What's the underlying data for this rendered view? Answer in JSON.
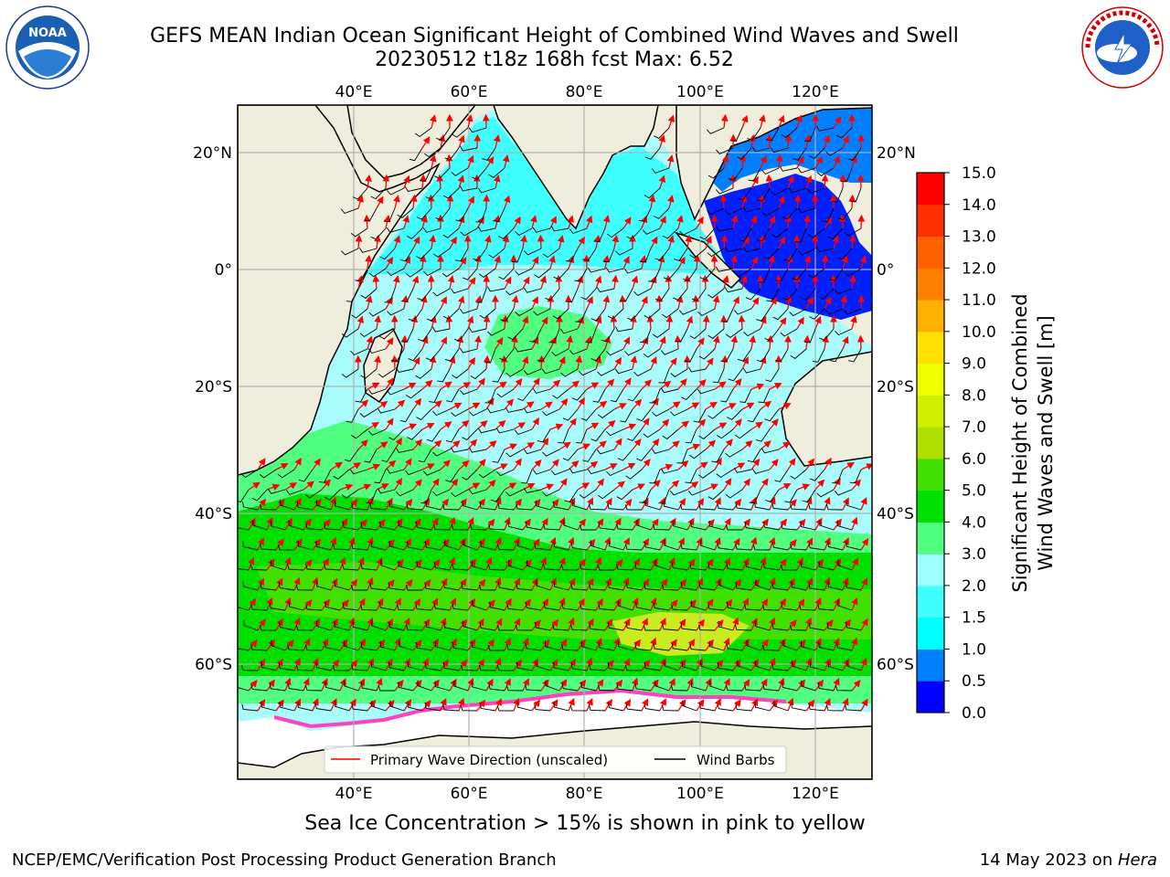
{
  "title": {
    "line1": "GEFS MEAN Indian Ocean Significant Height of Combined Wind Waves and Swell",
    "line2": "20230512 t18z 168h fcst   Max: 6.52"
  },
  "logos": {
    "left": {
      "name": "noaa-logo",
      "text": "NOAA"
    },
    "right": {
      "name": "nws-logo",
      "text": "NATIONAL WEATHER SERVICE"
    }
  },
  "map": {
    "lon_ticks": [
      "40°E",
      "60°E",
      "80°E",
      "100°E",
      "120°E"
    ],
    "lat_ticks_left": [
      "20°N",
      "0°",
      "20°S",
      "40°S",
      "60°S"
    ],
    "lat_ticks_right": [
      "20°N",
      "0°",
      "20°S",
      "40°S",
      "60°S"
    ],
    "land_color": "#efeddb",
    "grid_color": "#b0b0b0"
  },
  "legend": {
    "wave_direction": "Primary Wave Direction (unscaled)",
    "wind_barbs": "Wind Barbs",
    "wave_color": "#ff0000",
    "barb_color": "#000000"
  },
  "colorbar": {
    "label_line1": "Significant Height of Combined",
    "label_line2": "Wind Waves and Swell [m]",
    "ticks": [
      "0.0",
      "0.5",
      "1.0",
      "1.5",
      "2.0",
      "3.0",
      "4.0",
      "5.0",
      "6.0",
      "7.0",
      "8.0",
      "9.0",
      "10.0",
      "11.0",
      "12.0",
      "13.0",
      "14.0",
      "15.0"
    ],
    "colors": [
      "#0000ff",
      "#0080ff",
      "#00ffff",
      "#40ffff",
      "#a0ffff",
      "#50ff80",
      "#00e000",
      "#40e000",
      "#b0e000",
      "#d0f000",
      "#f0ff00",
      "#ffe000",
      "#ffb000",
      "#ff8000",
      "#ff6000",
      "#ff3000",
      "#ff0000"
    ]
  },
  "note": "Sea Ice Concentration > 15% is shown in pink to yellow",
  "footer": {
    "left": "NCEP/EMC/Verification Post Processing Product Generation Branch",
    "right_date": "14 May 2023 on ",
    "right_host": "Hera"
  }
}
